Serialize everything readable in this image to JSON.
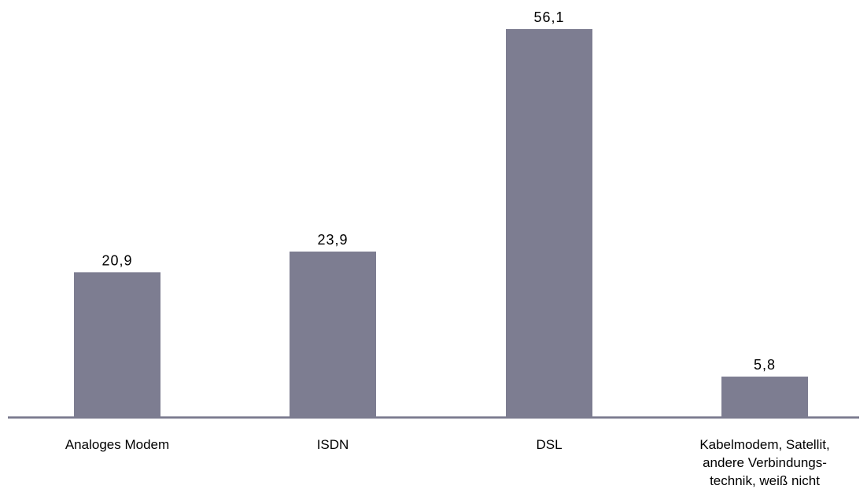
{
  "chart_data": {
    "type": "bar",
    "categories": [
      [
        "Analoges Modem"
      ],
      [
        "ISDN"
      ],
      [
        "DSL"
      ],
      [
        "Kabelmodem, Satellit,",
        "andere Verbindungs-",
        "technik, weiß nicht"
      ]
    ],
    "values": [
      20.9,
      23.9,
      56.1,
      5.8
    ],
    "value_labels": [
      "20,9",
      "23,9",
      "56,1",
      "5,8"
    ],
    "title": "",
    "xlabel": "",
    "ylabel": "",
    "ylim": [
      0,
      56.1
    ],
    "grid": false,
    "colors": {
      "bar": "#7d7d91",
      "axis": "#7d7d91"
    }
  }
}
